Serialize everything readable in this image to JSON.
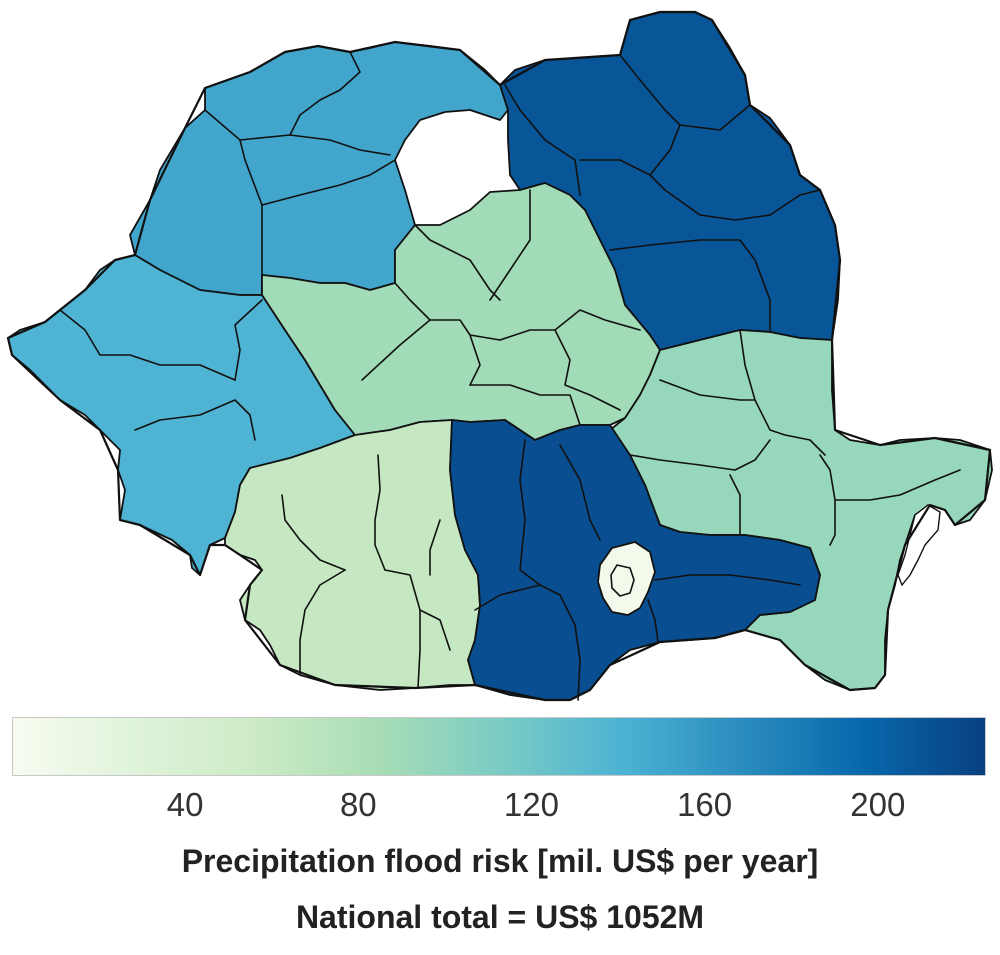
{
  "legend": {
    "title": "Precipitation flood risk [mil. US$ per year]",
    "subtitle": "National total = US$ 1052M",
    "range": [
      0,
      225
    ],
    "ticks": [
      40,
      80,
      120,
      160,
      200
    ],
    "gradient": [
      "#f7fcf0",
      "#e0f3db",
      "#ccebc5",
      "#a8ddb5",
      "#7bccc4",
      "#4eb3d3",
      "#2b8cbe",
      "#0868ac",
      "#084081"
    ]
  },
  "regions": [
    {
      "id": "north-west-1",
      "value": 150
    },
    {
      "id": "north-west-2",
      "value": 150
    },
    {
      "id": "north-west-3",
      "value": 150
    },
    {
      "id": "north-west-4",
      "value": 150
    },
    {
      "id": "north-west-5",
      "value": 150
    },
    {
      "id": "north-west-6",
      "value": 150
    },
    {
      "id": "west-1",
      "value": 140
    },
    {
      "id": "west-2",
      "value": 140
    },
    {
      "id": "west-3",
      "value": 140
    },
    {
      "id": "west-4",
      "value": 140
    },
    {
      "id": "north-east-1",
      "value": 210
    },
    {
      "id": "north-east-2",
      "value": 210
    },
    {
      "id": "north-east-3",
      "value": 210
    },
    {
      "id": "north-east-4",
      "value": 210
    },
    {
      "id": "north-east-5",
      "value": 210
    },
    {
      "id": "north-east-6",
      "value": 210
    },
    {
      "id": "centre-1",
      "value": 88
    },
    {
      "id": "centre-2",
      "value": 88
    },
    {
      "id": "centre-3",
      "value": 88
    },
    {
      "id": "centre-4",
      "value": 88
    },
    {
      "id": "centre-5",
      "value": 88
    },
    {
      "id": "centre-6",
      "value": 88
    },
    {
      "id": "south-east-1",
      "value": 95
    },
    {
      "id": "south-east-2",
      "value": 95
    },
    {
      "id": "south-east-3",
      "value": 95
    },
    {
      "id": "south-east-4",
      "value": 95
    },
    {
      "id": "south-east-5",
      "value": 95
    },
    {
      "id": "south-east-6",
      "value": 95
    },
    {
      "id": "south-west-1",
      "value": 62
    },
    {
      "id": "south-west-2",
      "value": 62
    },
    {
      "id": "south-west-3",
      "value": 62
    },
    {
      "id": "south-west-4",
      "value": 62
    },
    {
      "id": "south-west-5",
      "value": 62
    },
    {
      "id": "south-1",
      "value": 215
    },
    {
      "id": "south-2",
      "value": 215
    },
    {
      "id": "south-3",
      "value": 215
    },
    {
      "id": "south-4",
      "value": 215
    },
    {
      "id": "south-5",
      "value": 215
    },
    {
      "id": "south-6",
      "value": 215
    },
    {
      "id": "south-7",
      "value": 215
    },
    {
      "id": "bucharest-ilfov",
      "value": 5
    }
  ]
}
